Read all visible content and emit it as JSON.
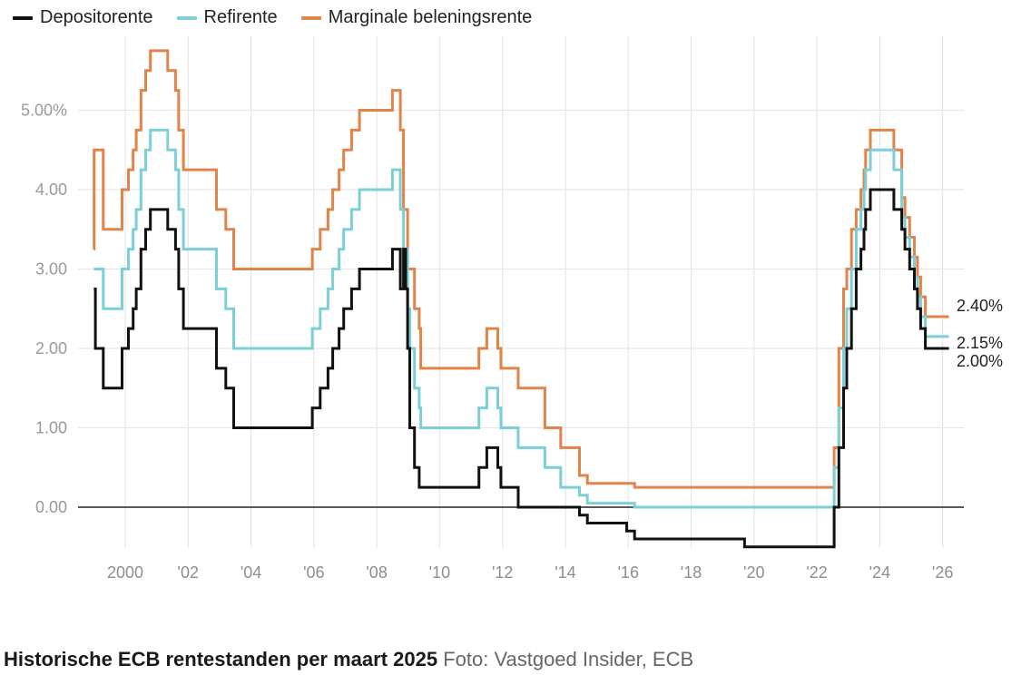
{
  "chart_data": {
    "type": "line",
    "line_shape": "step",
    "title": "",
    "xlabel": "",
    "ylabel": "",
    "xlim": [
      1999.0,
      2026.2
    ],
    "ylim": [
      -0.5,
      5.75
    ],
    "grid": true,
    "legend_position": "top-left",
    "y_ticks": [
      0,
      1,
      2,
      3,
      4,
      5
    ],
    "y_tick_labels": [
      "0.00",
      "1.00",
      "2.00",
      "3.00",
      "4.00",
      "5.00%"
    ],
    "x_ticks": [
      2000,
      2002,
      2004,
      2006,
      2008,
      2010,
      2012,
      2014,
      2016,
      2018,
      2020,
      2022,
      2024,
      2026
    ],
    "x_tick_labels": [
      "2000",
      "'02",
      "'04",
      "'06",
      "'08",
      "'10",
      "'12",
      "'14",
      "'16",
      "'18",
      "'20",
      "'22",
      "'24",
      "'26"
    ],
    "series": [
      {
        "name": "Depositorente",
        "color": "#111111",
        "end_label": "2.00%",
        "points": [
          [
            1999.0,
            2.75
          ],
          [
            1999.05,
            2.0
          ],
          [
            1999.3,
            1.5
          ],
          [
            1999.9,
            2.0
          ],
          [
            2000.1,
            2.25
          ],
          [
            2000.25,
            2.5
          ],
          [
            2000.35,
            2.75
          ],
          [
            2000.5,
            3.25
          ],
          [
            2000.65,
            3.5
          ],
          [
            2000.8,
            3.75
          ],
          [
            2001.35,
            3.5
          ],
          [
            2001.6,
            3.25
          ],
          [
            2001.7,
            2.75
          ],
          [
            2001.85,
            2.25
          ],
          [
            2002.9,
            1.75
          ],
          [
            2003.2,
            1.5
          ],
          [
            2003.45,
            1.0
          ],
          [
            2005.95,
            1.25
          ],
          [
            2006.2,
            1.5
          ],
          [
            2006.45,
            1.75
          ],
          [
            2006.6,
            2.0
          ],
          [
            2006.8,
            2.25
          ],
          [
            2006.95,
            2.5
          ],
          [
            2007.2,
            2.75
          ],
          [
            2007.45,
            3.0
          ],
          [
            2008.5,
            3.25
          ],
          [
            2008.75,
            2.75
          ],
          [
            2008.85,
            3.25
          ],
          [
            2008.92,
            2.75
          ],
          [
            2008.98,
            2.0
          ],
          [
            2009.05,
            1.0
          ],
          [
            2009.2,
            0.5
          ],
          [
            2009.35,
            0.25
          ],
          [
            2011.25,
            0.5
          ],
          [
            2011.5,
            0.75
          ],
          [
            2011.85,
            0.5
          ],
          [
            2011.95,
            0.25
          ],
          [
            2012.5,
            0.0
          ],
          [
            2014.45,
            -0.1
          ],
          [
            2014.7,
            -0.2
          ],
          [
            2015.95,
            -0.3
          ],
          [
            2016.2,
            -0.4
          ],
          [
            2019.7,
            -0.5
          ],
          [
            2022.55,
            0.0
          ],
          [
            2022.7,
            0.75
          ],
          [
            2022.85,
            1.5
          ],
          [
            2022.95,
            2.0
          ],
          [
            2023.1,
            2.5
          ],
          [
            2023.25,
            3.0
          ],
          [
            2023.4,
            3.25
          ],
          [
            2023.5,
            3.5
          ],
          [
            2023.55,
            3.75
          ],
          [
            2023.7,
            4.0
          ],
          [
            2024.45,
            3.75
          ],
          [
            2024.7,
            3.5
          ],
          [
            2024.8,
            3.25
          ],
          [
            2024.95,
            3.0
          ],
          [
            2025.1,
            2.75
          ],
          [
            2025.2,
            2.5
          ],
          [
            2025.3,
            2.25
          ],
          [
            2025.45,
            2.0
          ],
          [
            2026.2,
            2.0
          ]
        ]
      },
      {
        "name": "Refirente",
        "color": "#7dcfd6",
        "end_label": "2.15%",
        "points": [
          [
            1999.0,
            3.0
          ],
          [
            1999.3,
            2.5
          ],
          [
            1999.9,
            3.0
          ],
          [
            2000.1,
            3.25
          ],
          [
            2000.25,
            3.5
          ],
          [
            2000.35,
            3.75
          ],
          [
            2000.5,
            4.25
          ],
          [
            2000.65,
            4.5
          ],
          [
            2000.8,
            4.75
          ],
          [
            2001.35,
            4.5
          ],
          [
            2001.6,
            4.25
          ],
          [
            2001.7,
            3.75
          ],
          [
            2001.85,
            3.25
          ],
          [
            2002.9,
            2.75
          ],
          [
            2003.2,
            2.5
          ],
          [
            2003.45,
            2.0
          ],
          [
            2005.95,
            2.25
          ],
          [
            2006.2,
            2.5
          ],
          [
            2006.45,
            2.75
          ],
          [
            2006.6,
            3.0
          ],
          [
            2006.8,
            3.25
          ],
          [
            2006.95,
            3.5
          ],
          [
            2007.2,
            3.75
          ],
          [
            2007.45,
            4.0
          ],
          [
            2008.5,
            4.25
          ],
          [
            2008.75,
            3.75
          ],
          [
            2008.85,
            3.25
          ],
          [
            2008.98,
            2.5
          ],
          [
            2009.05,
            2.0
          ],
          [
            2009.2,
            1.5
          ],
          [
            2009.35,
            1.25
          ],
          [
            2009.4,
            1.0
          ],
          [
            2011.25,
            1.25
          ],
          [
            2011.5,
            1.5
          ],
          [
            2011.85,
            1.25
          ],
          [
            2011.95,
            1.0
          ],
          [
            2012.5,
            0.75
          ],
          [
            2013.35,
            0.5
          ],
          [
            2013.85,
            0.25
          ],
          [
            2014.45,
            0.15
          ],
          [
            2014.7,
            0.05
          ],
          [
            2016.2,
            0.0
          ],
          [
            2022.55,
            0.5
          ],
          [
            2022.7,
            1.25
          ],
          [
            2022.85,
            2.0
          ],
          [
            2022.95,
            2.5
          ],
          [
            2023.1,
            3.0
          ],
          [
            2023.25,
            3.5
          ],
          [
            2023.4,
            3.75
          ],
          [
            2023.5,
            4.0
          ],
          [
            2023.55,
            4.25
          ],
          [
            2023.7,
            4.5
          ],
          [
            2024.45,
            4.25
          ],
          [
            2024.7,
            3.65
          ],
          [
            2024.8,
            3.4
          ],
          [
            2024.95,
            3.15
          ],
          [
            2025.1,
            2.9
          ],
          [
            2025.2,
            2.65
          ],
          [
            2025.3,
            2.4
          ],
          [
            2025.45,
            2.15
          ],
          [
            2026.2,
            2.15
          ]
        ]
      },
      {
        "name": "Marginale beleningsrente",
        "color": "#e0844a",
        "end_label": "2.40%",
        "points": [
          [
            1999.0,
            3.25
          ],
          [
            1999.01,
            4.5
          ],
          [
            1999.3,
            3.5
          ],
          [
            1999.9,
            4.0
          ],
          [
            2000.1,
            4.25
          ],
          [
            2000.25,
            4.5
          ],
          [
            2000.35,
            4.75
          ],
          [
            2000.5,
            5.25
          ],
          [
            2000.65,
            5.5
          ],
          [
            2000.8,
            5.75
          ],
          [
            2001.35,
            5.5
          ],
          [
            2001.6,
            5.25
          ],
          [
            2001.7,
            4.75
          ],
          [
            2001.85,
            4.25
          ],
          [
            2002.9,
            3.75
          ],
          [
            2003.2,
            3.5
          ],
          [
            2003.45,
            3.0
          ],
          [
            2005.95,
            3.25
          ],
          [
            2006.2,
            3.5
          ],
          [
            2006.45,
            3.75
          ],
          [
            2006.6,
            4.0
          ],
          [
            2006.8,
            4.25
          ],
          [
            2006.95,
            4.5
          ],
          [
            2007.2,
            4.75
          ],
          [
            2007.45,
            5.0
          ],
          [
            2008.5,
            5.25
          ],
          [
            2008.75,
            4.75
          ],
          [
            2008.85,
            3.75
          ],
          [
            2008.98,
            3.0
          ],
          [
            2009.2,
            2.5
          ],
          [
            2009.35,
            2.25
          ],
          [
            2009.4,
            1.75
          ],
          [
            2011.25,
            2.0
          ],
          [
            2011.5,
            2.25
          ],
          [
            2011.85,
            2.0
          ],
          [
            2011.95,
            1.75
          ],
          [
            2012.5,
            1.5
          ],
          [
            2013.35,
            1.0
          ],
          [
            2013.85,
            0.75
          ],
          [
            2014.45,
            0.4
          ],
          [
            2014.7,
            0.3
          ],
          [
            2016.2,
            0.25
          ],
          [
            2022.55,
            0.75
          ],
          [
            2022.7,
            2.0
          ],
          [
            2022.85,
            2.75
          ],
          [
            2022.95,
            3.0
          ],
          [
            2023.1,
            3.5
          ],
          [
            2023.25,
            3.75
          ],
          [
            2023.4,
            4.0
          ],
          [
            2023.5,
            4.25
          ],
          [
            2023.55,
            4.5
          ],
          [
            2023.7,
            4.75
          ],
          [
            2024.45,
            4.5
          ],
          [
            2024.7,
            3.9
          ],
          [
            2024.8,
            3.65
          ],
          [
            2024.95,
            3.4
          ],
          [
            2025.1,
            3.15
          ],
          [
            2025.2,
            2.9
          ],
          [
            2025.3,
            2.65
          ],
          [
            2025.45,
            2.4
          ],
          [
            2026.2,
            2.4
          ]
        ]
      }
    ]
  },
  "legend": {
    "items": [
      {
        "label": "Depositorente",
        "color": "#111111"
      },
      {
        "label": "Refirente",
        "color": "#7dcfd6"
      },
      {
        "label": "Marginale beleningsrente",
        "color": "#e0844a"
      }
    ]
  },
  "caption": {
    "title": "Historische ECB rentestanden per maart 2025",
    "credit": "Foto: Vastgoed Insider, ECB"
  }
}
